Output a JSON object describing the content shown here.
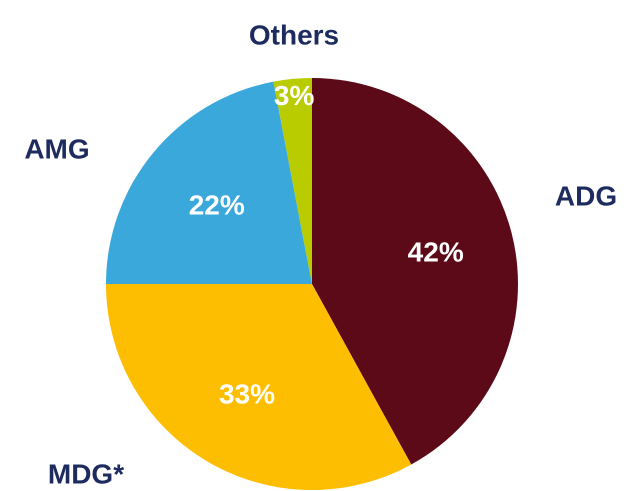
{
  "chart_data": {
    "type": "pie",
    "categories": [
      "ADG",
      "MDG*",
      "AMG",
      "Others"
    ],
    "values": [
      42,
      33,
      22,
      3
    ],
    "value_labels": [
      "42%",
      "33%",
      "22%",
      "3%"
    ],
    "colors": [
      "#5c0a18",
      "#fdbd00",
      "#3ba8dc",
      "#b8cc00"
    ],
    "label_color": "#1d2b5e",
    "value_label_color": "#ffffff",
    "legend": "none"
  }
}
